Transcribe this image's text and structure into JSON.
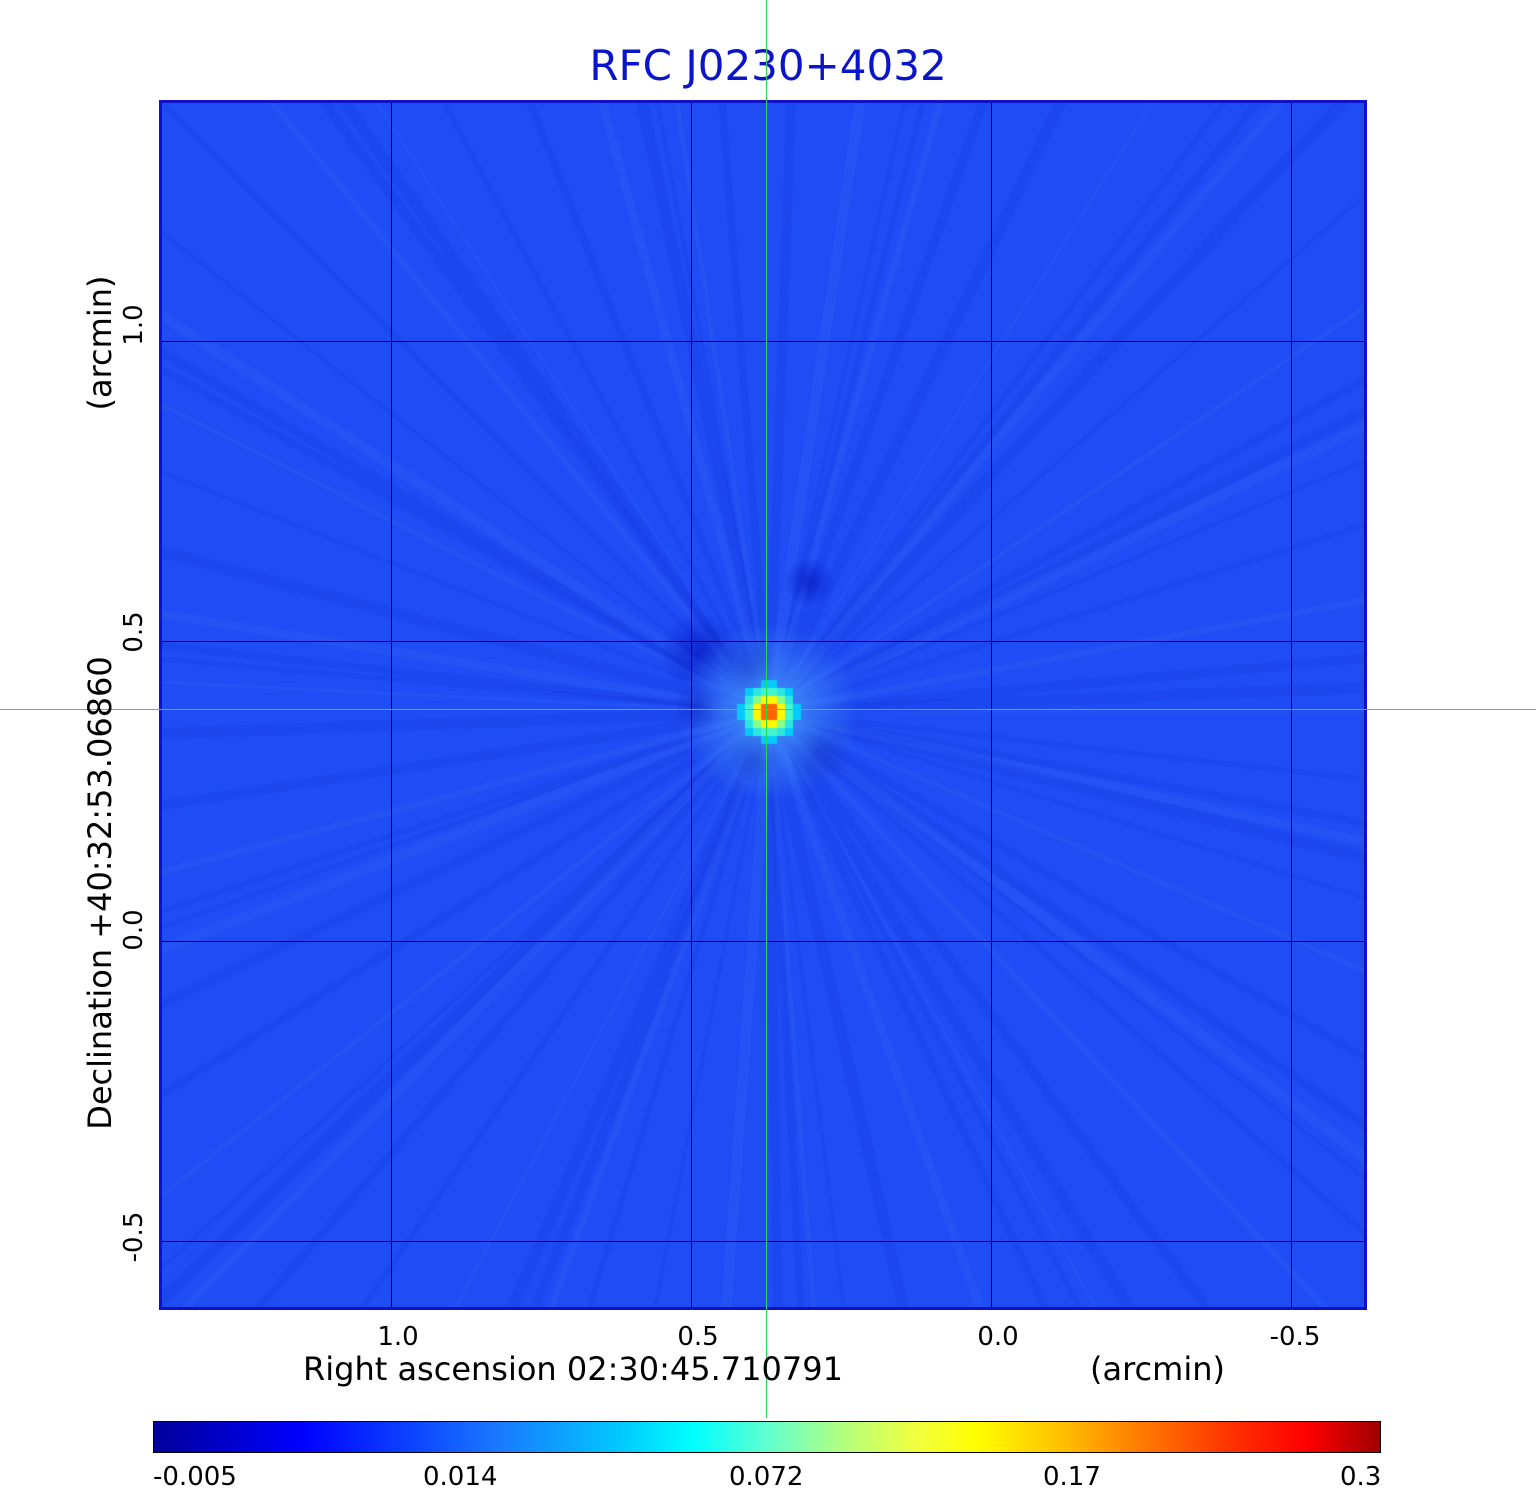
{
  "title": "RFC J0230+4032",
  "x_axis": {
    "label_prefix": "Right ascension  02:30:45.710791",
    "unit": "(arcmin)",
    "ticks": [
      "1.0",
      "0.5",
      "0.0",
      "-0.5"
    ]
  },
  "y_axis": {
    "label_prefix": "Declination  +40:32:53.06860",
    "unit": "(arcmin)",
    "ticks": [
      "1.0",
      "0.5",
      "0.0",
      "-0.5"
    ]
  },
  "colorbar": {
    "ticks": [
      "-0.005",
      "0.014",
      "0.072",
      "0.17",
      "0.3"
    ]
  },
  "colors": {
    "title": "#0a14c8",
    "frame": "#1010c8",
    "background_map": "#1f4cf4",
    "crosshair": "#22dd44"
  }
}
